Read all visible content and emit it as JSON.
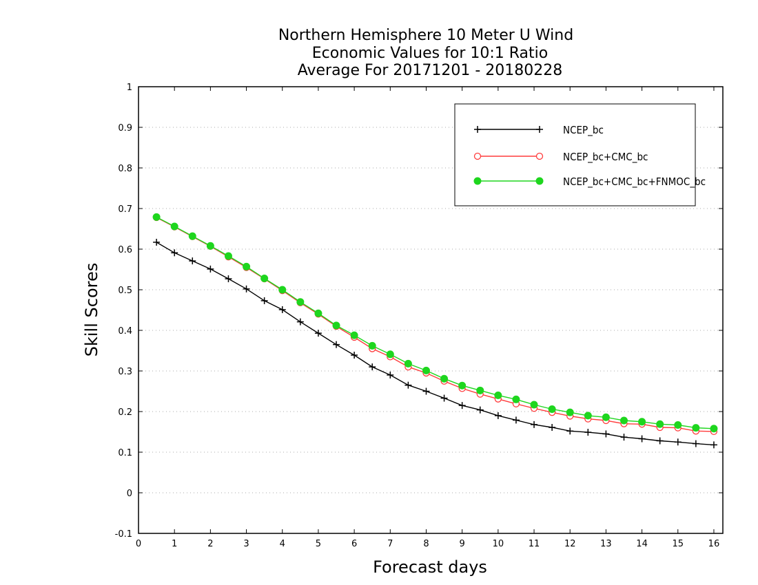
{
  "chart_data": {
    "type": "line",
    "title": [
      "Northern Hemisphere 10 Meter U Wind",
      "Economic Values for 10:1 Ratio",
      "Average For 20171201 - 20180228"
    ],
    "xlabel": "Forecast days",
    "ylabel": "Skill Scores",
    "xlim": [
      0,
      16.25
    ],
    "ylim": [
      -0.1,
      1
    ],
    "xticks": [
      "0",
      "1",
      "2",
      "3",
      "4",
      "5",
      "6",
      "7",
      "8",
      "9",
      "10",
      "11",
      "12",
      "13",
      "14",
      "15",
      "16"
    ],
    "yticks": [
      "-0.1",
      "0",
      "0.1",
      "0.2",
      "0.3",
      "0.4",
      "0.5",
      "0.6",
      "0.7",
      "0.8",
      "0.9",
      "1"
    ],
    "grid": true,
    "legend_position": "top-right",
    "x": [
      0.5,
      1,
      1.5,
      2,
      2.5,
      3,
      3.5,
      4,
      4.5,
      5,
      5.5,
      6,
      6.5,
      7,
      7.5,
      8,
      8.5,
      9,
      9.5,
      10,
      10.5,
      11,
      11.5,
      12,
      12.5,
      13,
      13.5,
      14,
      14.5,
      15,
      15.5,
      16
    ],
    "series": [
      {
        "name": "NCEP_bc",
        "color": "#000000",
        "marker": "plus",
        "values": [
          0.617,
          0.591,
          0.571,
          0.551,
          0.527,
          0.502,
          0.473,
          0.451,
          0.421,
          0.393,
          0.365,
          0.339,
          0.31,
          0.29,
          0.265,
          0.25,
          0.233,
          0.215,
          0.204,
          0.19,
          0.179,
          0.168,
          0.161,
          0.152,
          0.149,
          0.145,
          0.137,
          0.133,
          0.128,
          0.125,
          0.121,
          0.118
        ]
      },
      {
        "name": "NCEP_bc+CMC_bc",
        "color": "#ff3b3b",
        "marker": "circle-open",
        "values": [
          0.678,
          0.655,
          0.631,
          0.607,
          0.581,
          0.555,
          0.527,
          0.498,
          0.468,
          0.44,
          0.41,
          0.383,
          0.355,
          0.335,
          0.31,
          0.295,
          0.275,
          0.257,
          0.243,
          0.231,
          0.219,
          0.208,
          0.198,
          0.189,
          0.182,
          0.178,
          0.17,
          0.169,
          0.161,
          0.16,
          0.152,
          0.151
        ]
      },
      {
        "name": "NCEP_bc+CMC_bc+FNMOC_bc",
        "color": "#1ed61e",
        "marker": "circle-filled",
        "values": [
          0.679,
          0.656,
          0.632,
          0.608,
          0.583,
          0.557,
          0.528,
          0.5,
          0.47,
          0.442,
          0.412,
          0.388,
          0.362,
          0.341,
          0.318,
          0.301,
          0.281,
          0.264,
          0.252,
          0.24,
          0.23,
          0.217,
          0.206,
          0.198,
          0.19,
          0.186,
          0.178,
          0.175,
          0.169,
          0.167,
          0.16,
          0.158
        ]
      }
    ]
  }
}
